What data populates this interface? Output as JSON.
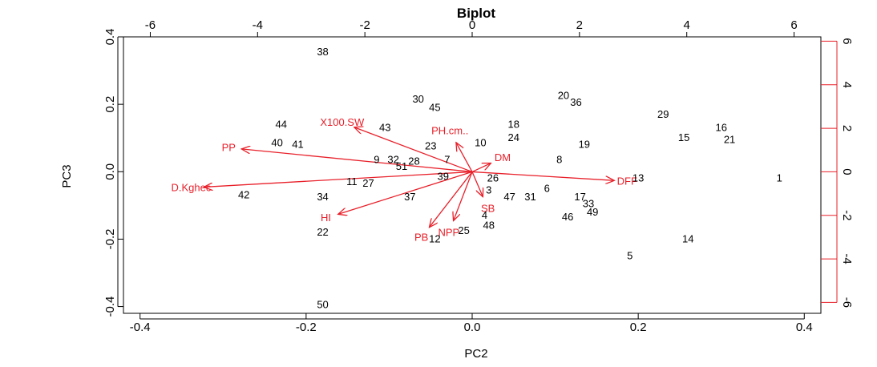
{
  "chart_data": {
    "type": "scatter",
    "title": "Biplot",
    "xlabel": "PC2",
    "ylabel": "PC3",
    "xlim": [
      -0.42,
      0.42
    ],
    "ylim": [
      -0.42,
      0.4
    ],
    "xticks": [
      -0.4,
      -0.2,
      0.0,
      0.2,
      0.4
    ],
    "xtick_labels": [
      "-0.4",
      "-0.2",
      "0.0",
      "0.2",
      "0.4"
    ],
    "yticks": [
      -0.4,
      -0.2,
      0.0,
      0.2,
      0.4
    ],
    "ytick_labels": [
      "-0.4",
      "-0.2",
      "0.0",
      "0.2",
      "0.4"
    ],
    "top_axis": {
      "ticks": [
        -6,
        -4,
        -2,
        0,
        2,
        4,
        6
      ],
      "tick_labels": [
        "-6",
        "-4",
        "-2",
        "0",
        "2",
        "4",
        "6"
      ],
      "range": [
        -6.5,
        6.5
      ]
    },
    "right_axis": {
      "ticks": [
        -6,
        -4,
        -2,
        0,
        2,
        4,
        6
      ],
      "tick_labels": [
        "-6",
        "-4",
        "-2",
        "0",
        "2",
        "4",
        "6"
      ],
      "range": [
        -6.5,
        6.2
      ],
      "color": "#e8202a"
    },
    "grid": false,
    "observations": [
      {
        "label": "38",
        "x": -0.18,
        "y": 0.355
      },
      {
        "label": "30",
        "x": -0.065,
        "y": 0.215
      },
      {
        "label": "45",
        "x": -0.045,
        "y": 0.19
      },
      {
        "label": "20",
        "x": 0.11,
        "y": 0.225
      },
      {
        "label": "36",
        "x": 0.125,
        "y": 0.205
      },
      {
        "label": "29",
        "x": 0.23,
        "y": 0.17
      },
      {
        "label": "16",
        "x": 0.3,
        "y": 0.13
      },
      {
        "label": "44",
        "x": -0.23,
        "y": 0.14
      },
      {
        "label": "43",
        "x": -0.105,
        "y": 0.13
      },
      {
        "label": "18",
        "x": 0.05,
        "y": 0.14
      },
      {
        "label": "24",
        "x": 0.05,
        "y": 0.1
      },
      {
        "label": "10",
        "x": 0.01,
        "y": 0.085
      },
      {
        "label": "19",
        "x": 0.135,
        "y": 0.08
      },
      {
        "label": "15",
        "x": 0.255,
        "y": 0.1
      },
      {
        "label": "21",
        "x": 0.31,
        "y": 0.095
      },
      {
        "label": "40",
        "x": -0.235,
        "y": 0.085
      },
      {
        "label": "41",
        "x": -0.21,
        "y": 0.08
      },
      {
        "label": "23",
        "x": -0.05,
        "y": 0.075
      },
      {
        "label": "9",
        "x": -0.115,
        "y": 0.035
      },
      {
        "label": "32",
        "x": -0.095,
        "y": 0.035
      },
      {
        "label": "28",
        "x": -0.07,
        "y": 0.03
      },
      {
        "label": "7",
        "x": -0.03,
        "y": 0.035
      },
      {
        "label": "8",
        "x": 0.105,
        "y": 0.035
      },
      {
        "label": "51",
        "x": -0.085,
        "y": 0.015
      },
      {
        "label": "13",
        "x": 0.2,
        "y": -0.02
      },
      {
        "label": "1",
        "x": 0.37,
        "y": -0.02
      },
      {
        "label": "39",
        "x": -0.035,
        "y": -0.015
      },
      {
        "label": "26",
        "x": 0.025,
        "y": -0.02
      },
      {
        "label": "11",
        "x": -0.145,
        "y": -0.03
      },
      {
        "label": "27",
        "x": -0.125,
        "y": -0.035
      },
      {
        "label": "6",
        "x": 0.09,
        "y": -0.05
      },
      {
        "label": "3",
        "x": 0.02,
        "y": -0.055
      },
      {
        "label": "42",
        "x": -0.275,
        "y": -0.07
      },
      {
        "label": "34",
        "x": -0.18,
        "y": -0.075
      },
      {
        "label": "37",
        "x": -0.075,
        "y": -0.075
      },
      {
        "label": "47",
        "x": 0.045,
        "y": -0.075
      },
      {
        "label": "31",
        "x": 0.07,
        "y": -0.075
      },
      {
        "label": "17",
        "x": 0.13,
        "y": -0.075
      },
      {
        "label": "33",
        "x": 0.14,
        "y": -0.095
      },
      {
        "label": "49",
        "x": 0.145,
        "y": -0.12
      },
      {
        "label": "46",
        "x": 0.115,
        "y": -0.135
      },
      {
        "label": "4",
        "x": 0.015,
        "y": -0.13
      },
      {
        "label": "48",
        "x": 0.02,
        "y": -0.16
      },
      {
        "label": "25",
        "x": -0.01,
        "y": -0.175
      },
      {
        "label": "22",
        "x": -0.18,
        "y": -0.18
      },
      {
        "label": "12",
        "x": -0.045,
        "y": -0.2
      },
      {
        "label": "14",
        "x": 0.26,
        "y": -0.2
      },
      {
        "label": "5",
        "x": 0.19,
        "y": -0.25
      },
      {
        "label": "50",
        "x": -0.18,
        "y": -0.395
      }
    ],
    "variables": [
      {
        "label": "X100.SW",
        "x": -2.2,
        "y": 2.05
      },
      {
        "label": "PP",
        "x": -4.3,
        "y": 1.05
      },
      {
        "label": "D.Kghec",
        "x": -5.0,
        "y": -0.7
      },
      {
        "label": "HI",
        "x": -2.5,
        "y": -1.95
      },
      {
        "label": "PB",
        "x": -0.8,
        "y": -2.55
      },
      {
        "label": "NPP",
        "x": -0.35,
        "y": -2.25
      },
      {
        "label": "SB",
        "x": 0.2,
        "y": -1.15
      },
      {
        "label": "PH.cm..",
        "x": -0.3,
        "y": 1.35
      },
      {
        "label": "DM",
        "x": 0.35,
        "y": 0.4
      },
      {
        "label": "DFF",
        "x": 2.65,
        "y": -0.4
      }
    ],
    "arrow_color": "#e8202a"
  }
}
